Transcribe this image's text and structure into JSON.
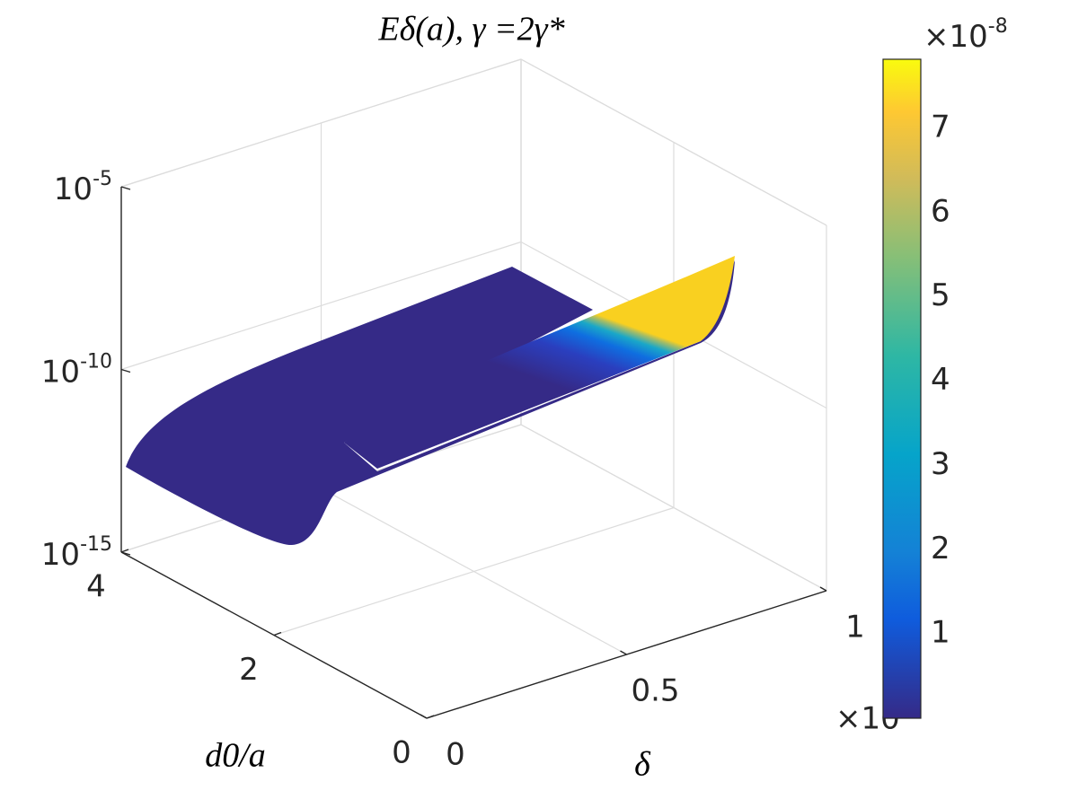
{
  "chart_data": {
    "type": "surface",
    "title": "Eδ(a), γ =2γ*",
    "xlabel": "δ",
    "ylabel": "d0/a",
    "xlim": [
      0,
      1
    ],
    "xticks": [
      0,
      0.5,
      1
    ],
    "x_exponent_label": "×10",
    "ylim": [
      0,
      4
    ],
    "yticks": [
      0,
      2,
      4
    ],
    "zlim": [
      1e-15,
      1e-05
    ],
    "zscale": "log",
    "zticks": [
      {
        "value": 1e-15,
        "label": "10-15"
      },
      {
        "value": 1e-10,
        "label": "10-10"
      },
      {
        "value": 1e-05,
        "label": "10-5"
      }
    ],
    "colorbar": {
      "clim": [
        0,
        7.82
      ],
      "ticks": [
        1,
        2,
        3,
        4,
        5,
        6,
        7
      ],
      "exponent_label": "×10-8",
      "colormap": "parula"
    },
    "grid": true
  }
}
